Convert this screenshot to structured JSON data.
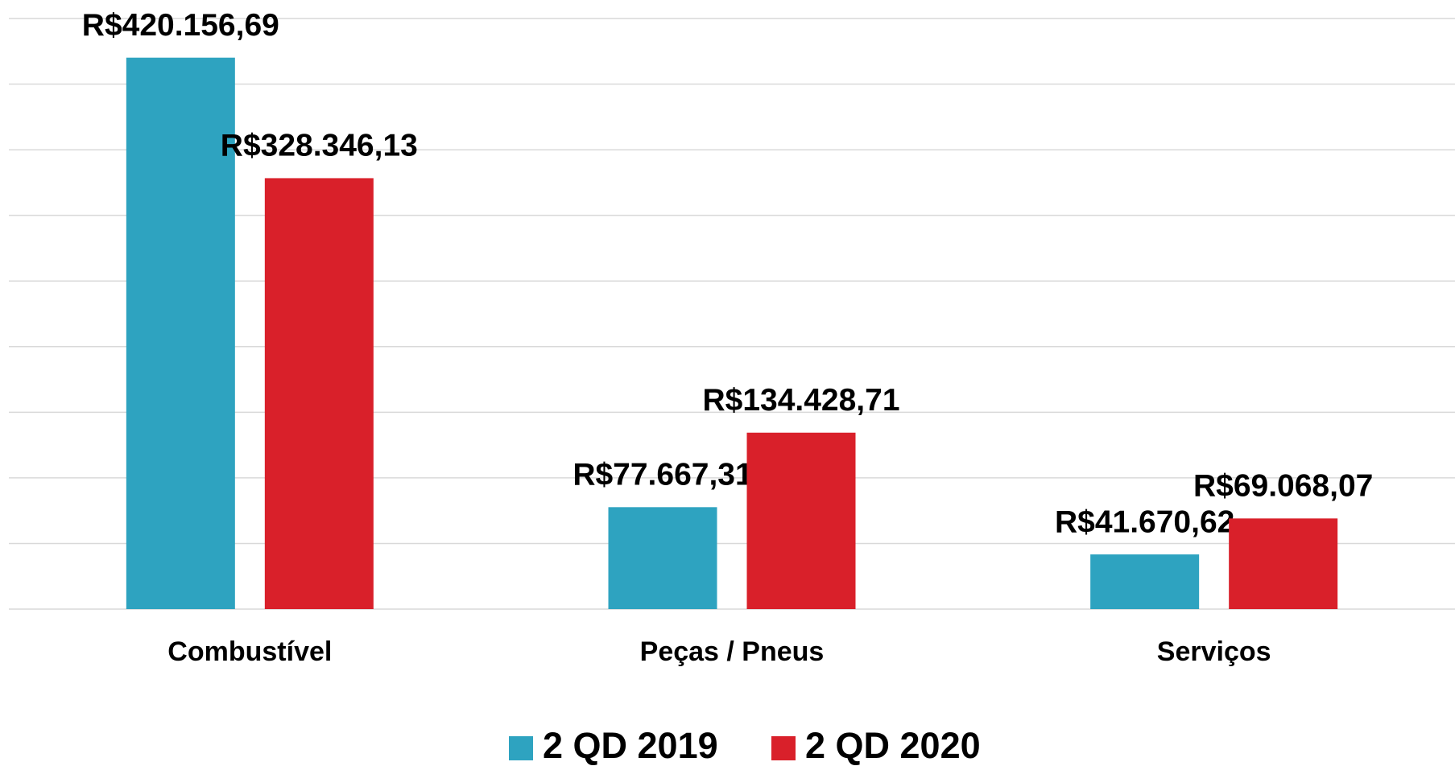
{
  "chart_data": {
    "type": "bar",
    "categories": [
      "Combustível",
      "Peças / Pneus",
      "Serviços"
    ],
    "series": [
      {
        "name": "2 QD 2019",
        "color": "#2ea3c0",
        "values": [
          420156.69,
          77667.31,
          41670.62
        ],
        "value_labels": [
          "R$420.156,69",
          "R$77.667,31",
          "R$41.670,62"
        ]
      },
      {
        "name": "2 QD 2020",
        "color": "#d9202a",
        "values": [
          328346.13,
          134428.71,
          69068.07
        ],
        "value_labels": [
          "R$328.346,13",
          "R$134.428,71",
          "R$69.068,07"
        ]
      }
    ],
    "ylim": [
      0,
      450000
    ],
    "yticks": [
      0,
      50000,
      100000,
      150000,
      200000,
      250000,
      300000,
      350000,
      400000,
      450000
    ],
    "grid": true,
    "legend": "bottom"
  }
}
